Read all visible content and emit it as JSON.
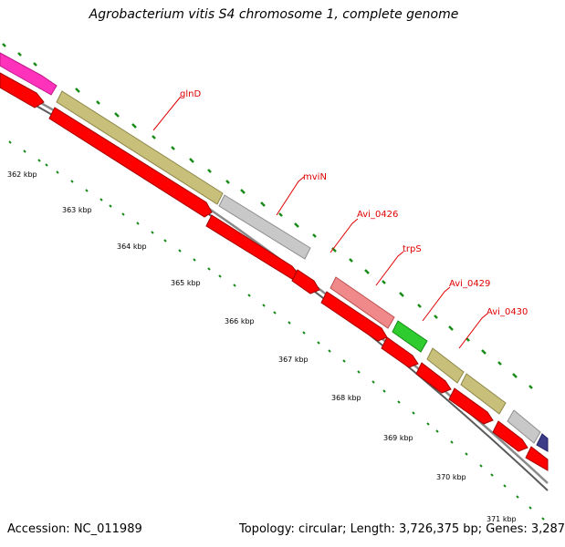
{
  "title": "Agrobacterium vitis S4 chromosome 1, complete genome",
  "footer": {
    "accession": "Accession: NC_011989",
    "summary": "Topology: circular; Length: 3,726,375 bp; Genes: 3,287"
  },
  "colors": {
    "tick": "#178b17",
    "backbone": "#8a8a8a",
    "cds": "#ff0000",
    "label": "#e00000"
  },
  "kbp_labels": [
    "362 kbp",
    "363 kbp",
    "364 kbp",
    "365 kbp",
    "366 kbp",
    "367 kbp",
    "368 kbp",
    "369 kbp",
    "370 kbp",
    "371 kbp"
  ],
  "gene_labels": [
    "glnD",
    "mviN",
    "Avi_0426",
    "trpS",
    "Avi_0429",
    "Avi_0430"
  ],
  "feature_colors": {
    "magenta": "#ff33bb",
    "olive": "#c8c07a",
    "grey": "#c8c8c8",
    "pink": "#f08a8a",
    "green": "#2ecc2e",
    "navy": "#3c3c88"
  }
}
